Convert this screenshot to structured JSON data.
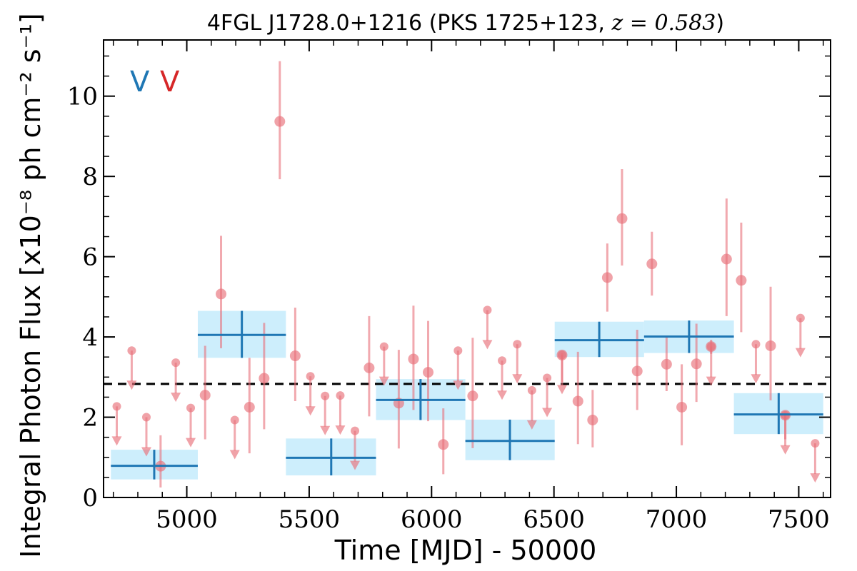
{
  "chart_data": {
    "type": "scatter",
    "title": "4FGL J1728.0+1216 (PKS 1725+123, z = 0.583)",
    "xlabel": "Time [MJD] - 50000",
    "ylabel": "Integral Photon Flux [x10⁻⁸ ph cm⁻² s⁻¹]",
    "xlim": [
      4660,
      7630
    ],
    "ylim": [
      0,
      11.4
    ],
    "xticks": [
      "5000",
      "5500",
      "6000",
      "6500",
      "7000",
      "7500"
    ],
    "yticks": [
      "0",
      "2",
      "4",
      "6",
      "8",
      "10"
    ],
    "variability_flags": [
      {
        "text": "V",
        "color": "#1f77b4"
      },
      {
        "text": "V",
        "color": "#d62728"
      }
    ],
    "mean_flux": 2.83,
    "colors": {
      "points": "#e8707a",
      "blocks_fill": "#cdeefc",
      "blocks_line": "#1f77b4",
      "mean_line": "#000000"
    },
    "series": [
      {
        "kind": "detections",
        "points": [
          {
            "x": 4893,
            "y": 0.78,
            "lo": 0.25,
            "hi": 1.55
          },
          {
            "x": 5075,
            "y": 2.55,
            "lo": 1.45,
            "hi": 3.78
          },
          {
            "x": 5140,
            "y": 5.07,
            "lo": 3.72,
            "hi": 6.52
          },
          {
            "x": 5256,
            "y": 2.25,
            "lo": 1.1,
            "hi": 3.48
          },
          {
            "x": 5316,
            "y": 2.97,
            "lo": 1.7,
            "hi": 4.35
          },
          {
            "x": 5380,
            "y": 9.37,
            "lo": 7.93,
            "hi": 10.87
          },
          {
            "x": 5443,
            "y": 3.53,
            "lo": 2.4,
            "hi": 4.73
          },
          {
            "x": 5745,
            "y": 3.23,
            "lo": 2.02,
            "hi": 4.52
          },
          {
            "x": 5866,
            "y": 2.35,
            "lo": 1.22,
            "hi": 3.68
          },
          {
            "x": 5926,
            "y": 3.45,
            "lo": 2.18,
            "hi": 4.78
          },
          {
            "x": 5986,
            "y": 3.12,
            "lo": 1.9,
            "hi": 4.4
          },
          {
            "x": 6048,
            "y": 1.32,
            "lo": 0.58,
            "hi": 2.22
          },
          {
            "x": 6168,
            "y": 2.53,
            "lo": 1.23,
            "hi": 3.98
          },
          {
            "x": 6533,
            "y": 3.55,
            "lo": 2.88,
            "hi": 3.6
          },
          {
            "x": 6598,
            "y": 2.4,
            "lo": 1.33,
            "hi": 3.63
          },
          {
            "x": 6658,
            "y": 1.93,
            "lo": 1.25,
            "hi": 2.68
          },
          {
            "x": 6718,
            "y": 5.48,
            "lo": 4.63,
            "hi": 6.33
          },
          {
            "x": 6778,
            "y": 6.95,
            "lo": 5.78,
            "hi": 8.18
          },
          {
            "x": 6840,
            "y": 3.15,
            "lo": 2.18,
            "hi": 4.18
          },
          {
            "x": 6900,
            "y": 5.82,
            "lo": 5.03,
            "hi": 6.62
          },
          {
            "x": 6960,
            "y": 3.32,
            "lo": 2.65,
            "hi": 4.02
          },
          {
            "x": 7022,
            "y": 2.25,
            "lo": 1.3,
            "hi": 3.32
          },
          {
            "x": 7082,
            "y": 3.33,
            "lo": 2.38,
            "hi": 4.33
          },
          {
            "x": 7142,
            "y": 3.76,
            "lo": 3.58,
            "hi": 3.93
          },
          {
            "x": 7205,
            "y": 5.94,
            "lo": 4.52,
            "hi": 7.45
          },
          {
            "x": 7265,
            "y": 5.41,
            "lo": 4.12,
            "hi": 6.85
          },
          {
            "x": 7385,
            "y": 3.78,
            "lo": 2.42,
            "hi": 5.25
          },
          {
            "x": 7445,
            "y": 2.05,
            "lo": 1.45,
            "hi": 2.12
          }
        ]
      },
      {
        "kind": "upper_limits",
        "points": [
          {
            "x": 4714,
            "y": 2.27
          },
          {
            "x": 4775,
            "y": 3.66
          },
          {
            "x": 4835,
            "y": 2.0
          },
          {
            "x": 4955,
            "y": 3.36
          },
          {
            "x": 5016,
            "y": 2.23
          },
          {
            "x": 5196,
            "y": 1.93
          },
          {
            "x": 5505,
            "y": 3.02
          },
          {
            "x": 5565,
            "y": 2.53
          },
          {
            "x": 5627,
            "y": 2.54
          },
          {
            "x": 5687,
            "y": 1.66
          },
          {
            "x": 5806,
            "y": 3.76
          },
          {
            "x": 6108,
            "y": 3.66
          },
          {
            "x": 6228,
            "y": 4.67
          },
          {
            "x": 6288,
            "y": 3.41
          },
          {
            "x": 6350,
            "y": 3.82
          },
          {
            "x": 6410,
            "y": 2.67
          },
          {
            "x": 6472,
            "y": 2.98
          },
          {
            "x": 6533,
            "y": 3.55
          },
          {
            "x": 7142,
            "y": 3.76
          },
          {
            "x": 7325,
            "y": 3.82
          },
          {
            "x": 7445,
            "y": 2.05
          },
          {
            "x": 7507,
            "y": 4.47
          },
          {
            "x": 7567,
            "y": 1.35
          }
        ]
      },
      {
        "kind": "bayesian_blocks",
        "blocks": [
          {
            "x0": 4690,
            "x1": 5045,
            "xc": 4867,
            "y": 0.79,
            "lo": 0.45,
            "hi": 1.19
          },
          {
            "x0": 5045,
            "x1": 5405,
            "xc": 5225,
            "y": 4.05,
            "lo": 3.48,
            "hi": 4.65
          },
          {
            "x0": 5405,
            "x1": 5773,
            "xc": 5590,
            "y": 0.99,
            "lo": 0.55,
            "hi": 1.47
          },
          {
            "x0": 5773,
            "x1": 6138,
            "xc": 5955,
            "y": 2.43,
            "lo": 1.93,
            "hi": 2.95
          },
          {
            "x0": 6138,
            "x1": 6503,
            "xc": 6320,
            "y": 1.41,
            "lo": 0.93,
            "hi": 1.94
          },
          {
            "x0": 6503,
            "x1": 6868,
            "xc": 6685,
            "y": 3.92,
            "lo": 3.5,
            "hi": 4.38
          },
          {
            "x0": 6868,
            "x1": 7235,
            "xc": 7052,
            "y": 4.01,
            "lo": 3.6,
            "hi": 4.41
          },
          {
            "x0": 7235,
            "x1": 7600,
            "xc": 7418,
            "y": 2.07,
            "lo": 1.58,
            "hi": 2.6
          }
        ]
      }
    ]
  }
}
